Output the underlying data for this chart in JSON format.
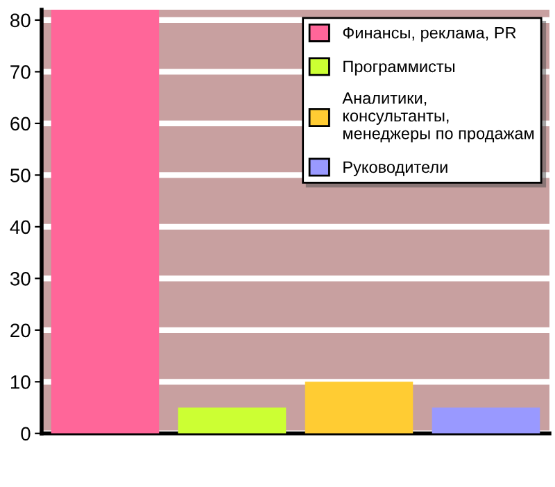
{
  "chart_data": {
    "type": "bar",
    "categories": [
      null,
      null,
      null,
      null
    ],
    "series": [
      {
        "name": "Финансы, реклама, PR",
        "color": "#ff6699",
        "values": [
          82,
          null,
          null,
          null
        ]
      },
      {
        "name": "Программисты",
        "color": "#ccff33",
        "values": [
          null,
          5,
          null,
          null
        ]
      },
      {
        "name": "Аналитики, консультанты, менеджеры по продажам",
        "color": "#ffcc33",
        "values": [
          null,
          null,
          10,
          null
        ]
      },
      {
        "name": "Руководители",
        "color": "#9999ff",
        "values": [
          null,
          null,
          null,
          5
        ]
      }
    ],
    "ylim": [
      0,
      82
    ],
    "yticks": [
      0,
      10,
      20,
      30,
      40,
      50,
      60,
      70,
      80
    ],
    "grid": "y",
    "legend": "top right",
    "tick_labels": "y"
  }
}
